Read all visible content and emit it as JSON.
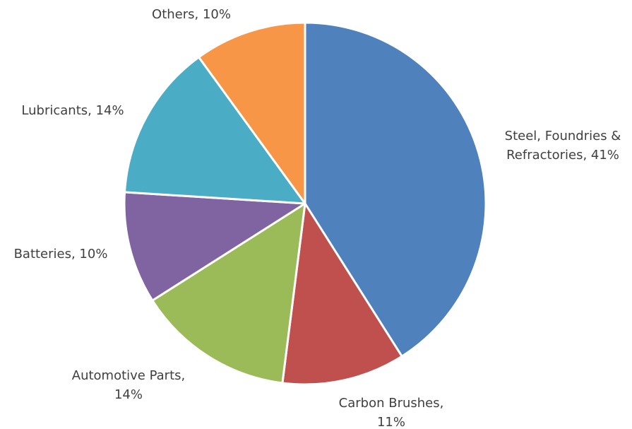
{
  "chart_data": {
    "type": "pie",
    "title": "",
    "slices": [
      {
        "label_lines": [
          "Steel, Foundries &",
          "Refractories, 41%"
        ],
        "value": 41,
        "color": "#4F81BD"
      },
      {
        "label_lines": [
          "Carbon Brushes,",
          "11%"
        ],
        "value": 11,
        "color": "#C0504D"
      },
      {
        "label_lines": [
          "Automotive Parts,",
          "14%"
        ],
        "value": 14,
        "color": "#9BBB59"
      },
      {
        "label_lines": [
          "Batteries, 10%"
        ],
        "value": 10,
        "color": "#8064A2"
      },
      {
        "label_lines": [
          "Lubricants, 14%"
        ],
        "value": 14,
        "color": "#4BACC6"
      },
      {
        "label_lines": [
          "Others, 10%"
        ],
        "value": 10,
        "color": "#F79646"
      }
    ]
  }
}
